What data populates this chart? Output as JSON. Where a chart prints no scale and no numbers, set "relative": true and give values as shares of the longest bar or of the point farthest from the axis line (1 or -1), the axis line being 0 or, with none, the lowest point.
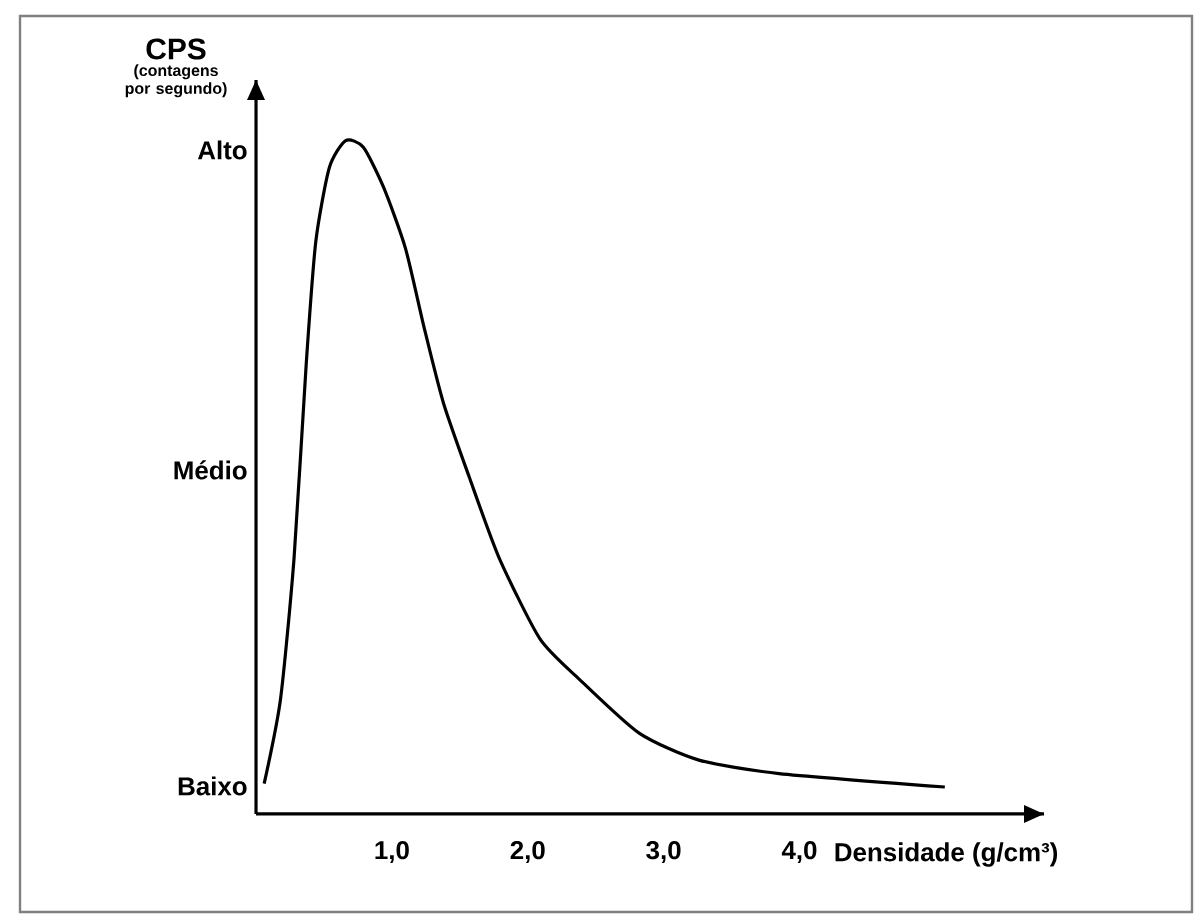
{
  "chart_data": {
    "type": "line",
    "relative": true,
    "xlabel": "Densidade (g/cm³)",
    "ylabel": "CPS",
    "annotations": [
      "(contagens por segundo)",
      "Baixo",
      "Médio",
      "Alto"
    ],
    "x": [
      0.06,
      0.18,
      0.28,
      0.37,
      0.44,
      0.54,
      0.66,
      0.79,
      0.94,
      1.1,
      1.24,
      1.38,
      1.57,
      1.79,
      2.09,
      2.38,
      2.82,
      3.26,
      3.85,
      5.07
    ],
    "series": [
      {
        "color": "#000000",
        "values": [
          0.045,
          0.17,
          0.38,
          0.67,
          0.85,
          0.96,
          1.0,
          0.99,
          0.93,
          0.84,
          0.72,
          0.61,
          0.5,
          0.38,
          0.26,
          0.2,
          0.12,
          0.08,
          0.06,
          0.04
        ]
      }
    ],
    "xlim": [
      0,
      5.8
    ],
    "xticks": [
      {
        "value": 1,
        "label": "1,0"
      },
      {
        "value": 2,
        "label": "2,0"
      },
      {
        "value": 3,
        "label": "3,0"
      },
      {
        "value": 4,
        "label": "4,0"
      }
    ]
  }
}
